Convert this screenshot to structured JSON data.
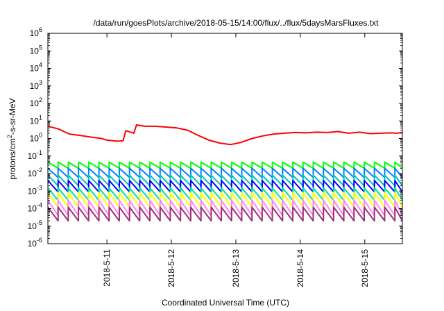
{
  "chart_data": {
    "type": "line",
    "title": "/data/run/goesPlots/archive/2018-05-15/14:00/flux/../flux/5daysMarsFluxes.txt",
    "xlabel": "Coordinated Universal Time (UTC)",
    "ylabel": {
      "base": "protons/cm",
      "sup": "2",
      "rest": "-s-sr-MeV"
    },
    "y_scale": "log",
    "ylim_exp": [
      -6,
      6
    ],
    "y_ticks": [
      {
        "exp": -6,
        "base": "10",
        "sup": "-6"
      },
      {
        "exp": -5,
        "base": "10",
        "sup": "-5"
      },
      {
        "exp": -4,
        "base": "10",
        "sup": "-4"
      },
      {
        "exp": -3,
        "base": "10",
        "sup": "-3"
      },
      {
        "exp": -2,
        "base": "10",
        "sup": "-2"
      },
      {
        "exp": -1,
        "base": "10",
        "sup": "-1"
      },
      {
        "exp": 0,
        "base": "10",
        "sup": "0"
      },
      {
        "exp": 1,
        "base": "10",
        "sup": "1"
      },
      {
        "exp": 2,
        "base": "10",
        "sup": "2"
      },
      {
        "exp": 3,
        "base": "10",
        "sup": "3"
      },
      {
        "exp": 4,
        "base": "10",
        "sup": "4"
      },
      {
        "exp": 5,
        "base": "10",
        "sup": "5"
      },
      {
        "exp": 6,
        "base": "10",
        "sup": "6"
      }
    ],
    "xlim": [
      "2018-05-10T02:00",
      "2018-05-15T14:00"
    ],
    "x_ticks": [
      {
        "t": "2018-05-11T00:00",
        "label": "2018-5-11"
      },
      {
        "t": "2018-05-12T00:00",
        "label": "2018-5-12"
      },
      {
        "t": "2018-05-13T00:00",
        "label": "2018-5-13"
      },
      {
        "t": "2018-05-14T00:00",
        "label": "2018-5-14"
      },
      {
        "t": "2018-05-15T00:00",
        "label": "2018-5-15"
      }
    ],
    "grid": false,
    "series": [
      {
        "color": "#ff0000",
        "style": "decay",
        "points": [
          [
            "2018-05-10T02:00",
            5
          ],
          [
            "2018-05-10T06:00",
            3.5
          ],
          [
            "2018-05-10T08:00",
            2.5
          ],
          [
            "2018-05-10T10:00",
            1.8
          ],
          [
            "2018-05-10T14:00",
            1.5
          ],
          [
            "2018-05-10T18:00",
            1.2
          ],
          [
            "2018-05-10T22:00",
            1.0
          ],
          [
            "2018-05-11T00:00",
            0.8
          ],
          [
            "2018-05-11T04:00",
            0.7
          ],
          [
            "2018-05-11T06:00",
            0.75
          ],
          [
            "2018-05-11T07:00",
            2.8
          ],
          [
            "2018-05-11T10:00",
            2.0
          ],
          [
            "2018-05-11T11:00",
            6
          ],
          [
            "2018-05-11T14:00",
            5
          ],
          [
            "2018-05-11T18:00",
            5
          ],
          [
            "2018-05-11T22:00",
            4.5
          ],
          [
            "2018-05-12T02:00",
            4
          ],
          [
            "2018-05-12T06:00",
            3
          ],
          [
            "2018-05-12T10:00",
            1.5
          ],
          [
            "2018-05-12T14:00",
            0.8
          ],
          [
            "2018-05-12T18:00",
            0.55
          ],
          [
            "2018-05-12T22:00",
            0.45
          ],
          [
            "2018-05-13T02:00",
            0.6
          ],
          [
            "2018-05-13T06:00",
            1.0
          ],
          [
            "2018-05-13T10:00",
            1.4
          ],
          [
            "2018-05-13T14:00",
            1.8
          ],
          [
            "2018-05-13T18:00",
            2.0
          ],
          [
            "2018-05-13T22:00",
            2.2
          ],
          [
            "2018-05-14T02:00",
            2.1
          ],
          [
            "2018-05-14T06:00",
            2.3
          ],
          [
            "2018-05-14T10:00",
            2.2
          ],
          [
            "2018-05-14T14:00",
            2.5
          ],
          [
            "2018-05-14T18:00",
            2.0
          ],
          [
            "2018-05-14T22:00",
            2.3
          ],
          [
            "2018-05-15T00:00",
            2.1
          ],
          [
            "2018-05-15T02:00",
            1.9
          ],
          [
            "2018-05-15T06:00",
            2.0
          ],
          [
            "2018-05-15T10:00",
            2.1
          ],
          [
            "2018-05-15T12:00",
            2.0
          ],
          [
            "2018-05-15T14:00",
            2.2
          ]
        ]
      },
      {
        "color": "#00ff00",
        "style": "sawtooth",
        "high": 0.045,
        "low": 0.02,
        "period_hours": 3.8,
        "xlim": [
          "2018-05-10T02:00",
          "2018-05-15T14:00"
        ]
      },
      {
        "color": "#0080ff",
        "style": "sawtooth",
        "high": 0.02,
        "low": 0.006,
        "period_hours": 3.8,
        "xlim": [
          "2018-05-10T02:00",
          "2018-05-15T14:00"
        ]
      },
      {
        "color": "#00c0c0",
        "style": "sawtooth",
        "high": 0.008,
        "low": 0.002,
        "period_hours": 3.8,
        "xlim": [
          "2018-05-10T02:00",
          "2018-05-15T14:00"
        ]
      },
      {
        "color": "#0000ff",
        "style": "sawtooth",
        "high": 0.004,
        "low": 0.0009,
        "period_hours": 3.8,
        "xlim": [
          "2018-05-10T02:00",
          "2018-05-15T14:00"
        ]
      },
      {
        "color": "#00e0a0",
        "style": "sawtooth",
        "high": 0.0015,
        "low": 0.0003,
        "period_hours": 3.8,
        "xlim": [
          "2018-05-10T02:00",
          "2018-05-15T14:00"
        ]
      },
      {
        "color": "#ffff00",
        "style": "sawtooth",
        "high": 0.0008,
        "low": 0.00012,
        "period_hours": 3.8,
        "xlim": [
          "2018-05-10T02:00",
          "2018-05-15T14:00"
        ]
      },
      {
        "color": "#ff80ff",
        "style": "sawtooth",
        "high": 0.0003,
        "low": 4e-05,
        "period_hours": 3.8,
        "xlim": [
          "2018-05-10T02:00",
          "2018-05-15T14:00"
        ]
      },
      {
        "color": "#a03070",
        "style": "sawtooth",
        "high": 0.00012,
        "low": 2e-05,
        "period_hours": 3.8,
        "xlim": [
          "2018-05-10T02:00",
          "2018-05-15T14:00"
        ]
      }
    ]
  }
}
